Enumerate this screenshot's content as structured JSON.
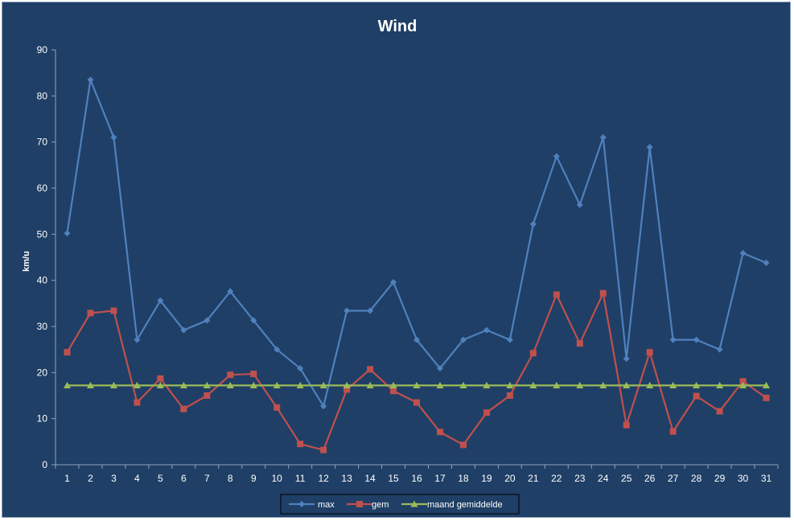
{
  "chart_data": {
    "type": "line",
    "title": "Wind",
    "xlabel": "",
    "ylabel": "km/u",
    "ylim": [
      0,
      90
    ],
    "yticks": [
      0,
      10,
      20,
      30,
      40,
      50,
      60,
      70,
      80,
      90
    ],
    "categories": [
      "1",
      "2",
      "3",
      "4",
      "5",
      "6",
      "7",
      "8",
      "9",
      "10",
      "11",
      "12",
      "13",
      "14",
      "15",
      "16",
      "17",
      "18",
      "19",
      "20",
      "21",
      "22",
      "23",
      "24",
      "25",
      "26",
      "27",
      "28",
      "29",
      "30",
      "31"
    ],
    "grid": false,
    "legend_position": "bottom",
    "series": [
      {
        "name": "max",
        "color": "#4f81bd",
        "marker": "diamond",
        "values": [
          50.2,
          83.5,
          71.0,
          27.1,
          35.6,
          29.2,
          31.3,
          37.6,
          31.3,
          25.0,
          20.9,
          12.7,
          33.4,
          33.4,
          39.6,
          27.1,
          20.9,
          27.1,
          29.2,
          27.1,
          52.2,
          66.9,
          56.4,
          71.0,
          23.0,
          68.9,
          27.1,
          27.1,
          25.0,
          45.9,
          43.8
        ]
      },
      {
        "name": "gem",
        "color": "#c0504d",
        "marker": "square",
        "values": [
          24.4,
          32.9,
          33.4,
          13.5,
          18.7,
          12.1,
          15.0,
          19.5,
          19.7,
          12.4,
          4.5,
          3.2,
          16.3,
          20.7,
          16.0,
          13.5,
          7.1,
          4.3,
          11.3,
          15.0,
          24.2,
          36.9,
          26.3,
          37.2,
          8.6,
          24.4,
          7.2,
          14.9,
          11.6,
          18.1,
          14.5
        ]
      },
      {
        "name": "maand gemiddelde",
        "color": "#9bbb59",
        "marker": "triangle",
        "values": [
          17.2,
          17.2,
          17.2,
          17.2,
          17.2,
          17.2,
          17.2,
          17.2,
          17.2,
          17.2,
          17.2,
          17.2,
          17.2,
          17.2,
          17.2,
          17.2,
          17.2,
          17.2,
          17.2,
          17.2,
          17.2,
          17.2,
          17.2,
          17.2,
          17.2,
          17.2,
          17.2,
          17.2,
          17.2,
          17.2,
          17.2
        ]
      }
    ]
  }
}
